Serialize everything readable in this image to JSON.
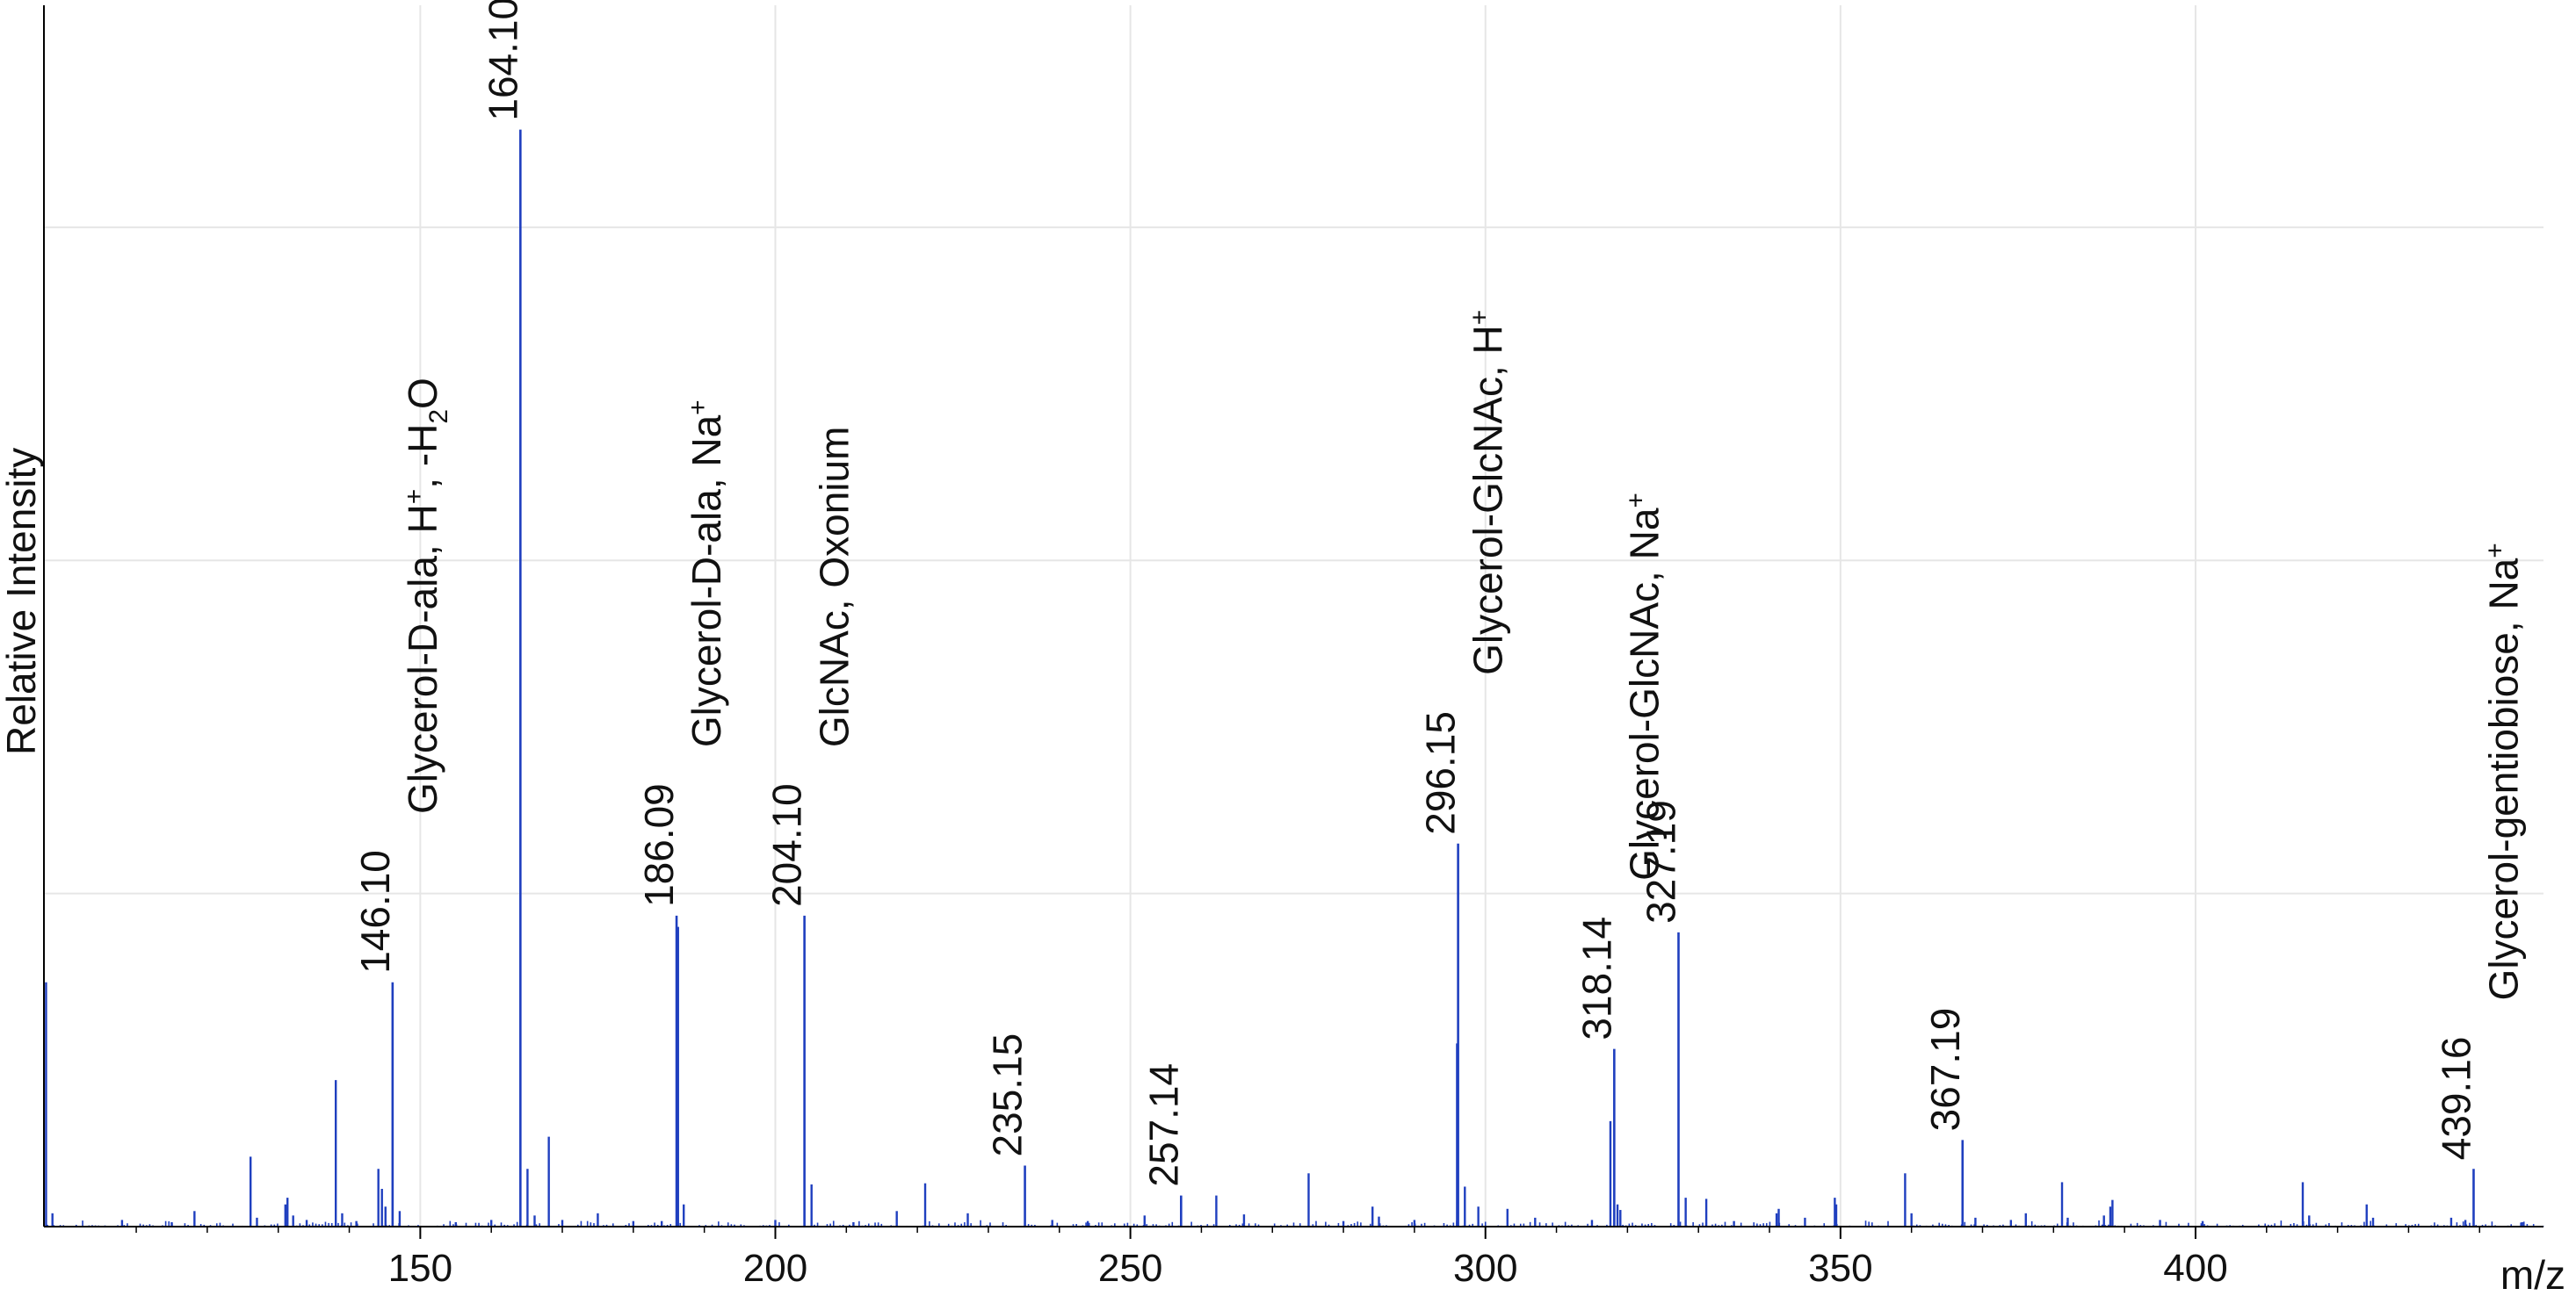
{
  "chart_data": {
    "type": "bar",
    "xlabel": "m/z",
    "ylabel": "Relative Intensity",
    "xlim": [
      97,
      449
    ],
    "ylim": [
      0,
      1.1
    ],
    "grid": true,
    "x_ticks": [
      150,
      200,
      250,
      300,
      350,
      400
    ],
    "y_gridlines": [
      0.3,
      0.6,
      0.9
    ],
    "series_color": "#1f3fbf",
    "labeled_peaks": [
      {
        "mz": 146.1,
        "intensity": 0.22,
        "mz_label": "146.10",
        "annotation": "Glycerol-D-ala, H",
        "ion": "+",
        "suffix": ", -H",
        "sub": "2",
        "tail": "O"
      },
      {
        "mz": 164.1,
        "intensity": 0.988,
        "mz_label": "164.10",
        "annotation": "Glycerol-D-ala, H",
        "ion": "+"
      },
      {
        "mz": 186.09,
        "intensity": 0.28,
        "mz_label": "186.09",
        "annotation": "Glycerol-D-ala, Na",
        "ion": "+"
      },
      {
        "mz": 204.1,
        "intensity": 0.28,
        "mz_label": "204.10",
        "annotation": "GlcNAc, Oxonium",
        "ion": ""
      },
      {
        "mz": 235.15,
        "intensity": 0.055,
        "mz_label": "235.15",
        "annotation": "",
        "ion": ""
      },
      {
        "mz": 257.14,
        "intensity": 0.028,
        "mz_label": "257.14",
        "annotation": "",
        "ion": ""
      },
      {
        "mz": 296.15,
        "intensity": 0.345,
        "mz_label": "296.15",
        "annotation": "Glycerol-GlcNAc, H",
        "ion": "+"
      },
      {
        "mz": 318.14,
        "intensity": 0.16,
        "mz_label": "318.14",
        "annotation": "Glycerol-GlcNAc, Na",
        "ion": "+"
      },
      {
        "mz": 327.19,
        "intensity": 0.265,
        "mz_label": "327.19",
        "annotation": "",
        "ion": ""
      },
      {
        "mz": 367.19,
        "intensity": 0.078,
        "mz_label": "367.19",
        "annotation": "",
        "ion": ""
      },
      {
        "mz": 439.16,
        "intensity": 0.052,
        "mz_label": "439.16",
        "annotation": "Glycerol-gentiobiose, Na",
        "ion": "+"
      }
    ],
    "minor_peaks": [
      [
        97.3,
        0.22
      ],
      [
        98.2,
        0.012
      ],
      [
        108,
        0.006
      ],
      [
        115,
        0.004
      ],
      [
        118.2,
        0.014
      ],
      [
        126.1,
        0.063
      ],
      [
        127.0,
        0.008
      ],
      [
        131.0,
        0.02
      ],
      [
        131.3,
        0.026
      ],
      [
        132.1,
        0.01
      ],
      [
        134,
        0.006
      ],
      [
        138.1,
        0.132
      ],
      [
        139.0,
        0.012
      ],
      [
        141,
        0.005
      ],
      [
        144.1,
        0.052
      ],
      [
        144.6,
        0.034
      ],
      [
        145.1,
        0.018
      ],
      [
        147.1,
        0.014
      ],
      [
        155,
        0.004
      ],
      [
        160,
        0.006
      ],
      [
        165.1,
        0.052
      ],
      [
        166.1,
        0.01
      ],
      [
        168.1,
        0.081
      ],
      [
        170,
        0.006
      ],
      [
        175.0,
        0.012
      ],
      [
        180,
        0.005
      ],
      [
        184.0,
        0.005
      ],
      [
        186.3,
        0.27
      ],
      [
        187.1,
        0.02
      ],
      [
        200,
        0.006
      ],
      [
        205.1,
        0.038
      ],
      [
        211,
        0.004
      ],
      [
        217.1,
        0.014
      ],
      [
        221.1,
        0.039
      ],
      [
        227.1,
        0.012
      ],
      [
        239,
        0.006
      ],
      [
        244,
        0.005
      ],
      [
        252,
        0.01
      ],
      [
        262.1,
        0.028
      ],
      [
        266,
        0.011
      ],
      [
        275.1,
        0.048
      ],
      [
        280,
        0.005
      ],
      [
        284.1,
        0.018
      ],
      [
        285,
        0.009
      ],
      [
        290,
        0.006
      ],
      [
        296.0,
        0.165
      ],
      [
        297.1,
        0.036
      ],
      [
        299.0,
        0.018
      ],
      [
        303.1,
        0.016
      ],
      [
        307,
        0.008
      ],
      [
        315,
        0.006
      ],
      [
        317.6,
        0.095
      ],
      [
        318.6,
        0.02
      ],
      [
        319,
        0.015
      ],
      [
        328.2,
        0.026
      ],
      [
        331.1,
        0.025
      ],
      [
        335,
        0.005
      ],
      [
        341.0,
        0.012
      ],
      [
        341.3,
        0.016
      ],
      [
        345,
        0.008
      ],
      [
        349.2,
        0.026
      ],
      [
        349.4,
        0.02
      ],
      [
        359.1,
        0.048
      ],
      [
        360,
        0.012
      ],
      [
        369,
        0.008
      ],
      [
        374,
        0.006
      ],
      [
        376.1,
        0.012
      ],
      [
        381.2,
        0.04
      ],
      [
        382,
        0.008
      ],
      [
        387.1,
        0.01
      ],
      [
        388.0,
        0.018
      ],
      [
        388.3,
        0.024
      ],
      [
        395,
        0.006
      ],
      [
        401,
        0.005
      ],
      [
        415.1,
        0.04
      ],
      [
        416,
        0.01
      ],
      [
        424.1,
        0.02
      ],
      [
        425,
        0.008
      ],
      [
        436,
        0.008
      ],
      [
        438,
        0.006
      ],
      [
        446,
        0.004
      ]
    ]
  }
}
